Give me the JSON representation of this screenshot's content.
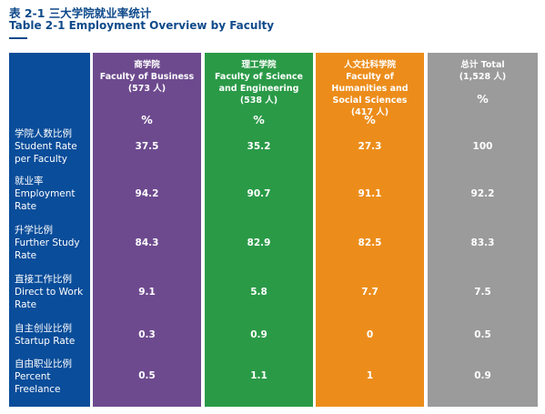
{
  "title": {
    "cn": "表 2-1 三大学院就业率统计",
    "en": "Table 2-1 Employment Overview by Faculty"
  },
  "columns": [
    {
      "name_cn": "商学院",
      "name_en": "Faculty of Business",
      "count": "(573 人)",
      "unit": "%",
      "color": "#6d4a8e"
    },
    {
      "name_cn": "理工学院",
      "name_en": "Faculty of Science and Engineering",
      "count": "(538 人)",
      "unit": "%",
      "color": "#2a9a47"
    },
    {
      "name_cn": "人文社科学院",
      "name_en": "Faculty of Humanities and Social Sciences",
      "count": "(417 人)",
      "unit": "%",
      "color": "#ec8d1b"
    },
    {
      "name_cn": "总计 Total",
      "name_en": "",
      "count": "(1,528 人)",
      "unit": "%",
      "color": "#9b9b9b"
    }
  ],
  "rows": [
    {
      "label_cn": "学院人数比例",
      "label_en": "Student Rate per Faculty",
      "values": [
        "37.5",
        "35.2",
        "27.3",
        "100"
      ]
    },
    {
      "label_cn": "就业率",
      "label_en": "Employment Rate",
      "values": [
        "94.2",
        "90.7",
        "91.1",
        "92.2"
      ]
    },
    {
      "label_cn": "升学比例",
      "label_en": "Further Study Rate",
      "values": [
        "84.3",
        "82.9",
        "82.5",
        "83.3"
      ]
    },
    {
      "label_cn": "直接工作比例",
      "label_en": "Direct to Work Rate",
      "values": [
        "9.1",
        "5.8",
        "7.7",
        "7.5"
      ]
    },
    {
      "label_cn": "自主创业比例",
      "label_en": "Startup Rate",
      "values": [
        "0.3",
        "0.9",
        "0",
        "0.5"
      ]
    },
    {
      "label_cn": "自由职业比例",
      "label_en": "Percent Freelance",
      "values": [
        "0.5",
        "1.1",
        "1",
        "0.9"
      ]
    }
  ],
  "label_column_color": "#0a4d9a"
}
